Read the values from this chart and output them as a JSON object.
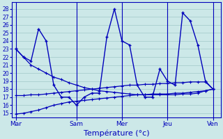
{
  "background_color": "#cce8e8",
  "grid_color": "#a0c8c8",
  "line_color": "#0000bb",
  "xlabel": "Température (°c)",
  "xlabel_fontsize": 8,
  "yticks": [
    15,
    16,
    17,
    18,
    19,
    20,
    21,
    22,
    23,
    24,
    25,
    26,
    27,
    28
  ],
  "ylim": [
    14.5,
    28.8
  ],
  "x_tick_labels": [
    "Mar",
    "Sam",
    "Mer",
    "Jeu",
    "Ven"
  ],
  "x_tick_positions": [
    0,
    8,
    14,
    20,
    26
  ],
  "xlim": [
    -0.5,
    27
  ],
  "series_jagged": [
    23.0,
    22.0,
    21.5,
    25.5,
    24.0,
    18.5,
    17.0,
    17.0,
    16.0,
    17.0,
    17.5,
    17.5,
    24.5,
    28.0,
    24.0,
    23.5,
    18.5,
    17.0,
    17.0,
    20.5,
    19.0,
    18.5,
    27.5,
    26.5,
    23.5,
    19.0,
    18.0
  ],
  "series_high_to_low": [
    23.0,
    22.0,
    21.0,
    20.5,
    20.0,
    19.5,
    19.2,
    18.8,
    18.5,
    18.2,
    18.0,
    17.8,
    17.7,
    17.6,
    17.5,
    17.4,
    17.3,
    17.3,
    17.3,
    17.3,
    17.3,
    17.3,
    17.4,
    17.4,
    17.5,
    17.8,
    18.0
  ],
  "series_flat_high": [
    17.2,
    17.2,
    17.3,
    17.3,
    17.4,
    17.5,
    17.6,
    17.7,
    17.8,
    17.9,
    18.0,
    18.1,
    18.2,
    18.3,
    18.4,
    18.5,
    18.5,
    18.6,
    18.6,
    18.7,
    18.7,
    18.8,
    18.8,
    18.9,
    18.9,
    18.9,
    18.0
  ],
  "series_low_rising": [
    14.9,
    15.0,
    15.2,
    15.4,
    15.7,
    16.0,
    16.2,
    16.4,
    16.5,
    16.6,
    16.7,
    16.8,
    16.9,
    17.0,
    17.1,
    17.2,
    17.3,
    17.3,
    17.4,
    17.4,
    17.4,
    17.5,
    17.5,
    17.6,
    17.7,
    17.8,
    18.0
  ]
}
